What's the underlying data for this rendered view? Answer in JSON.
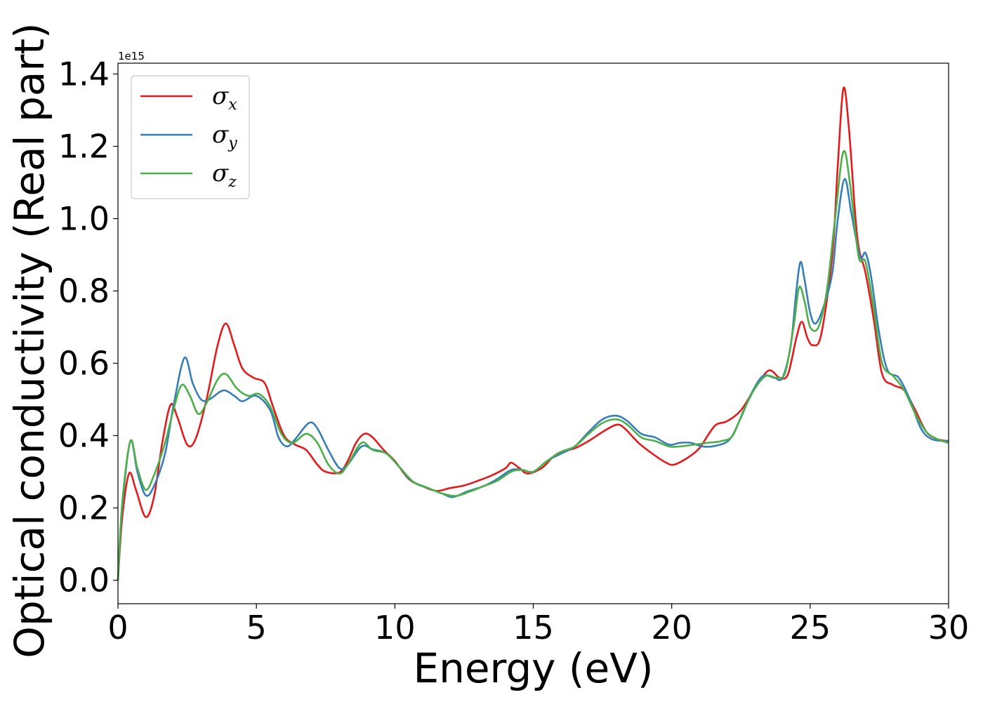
{
  "chart_data": {
    "type": "line",
    "title": "",
    "xlabel": "Energy (eV)",
    "ylabel": "Optical conductivity (Real part)",
    "y_offset_label": "1e15",
    "xlim": [
      0,
      30
    ],
    "ylim": [
      -0.065,
      1.43
    ],
    "xticks": [
      0,
      5,
      10,
      15,
      20,
      25,
      30
    ],
    "xtick_labels": [
      "0",
      "5",
      "10",
      "15",
      "20",
      "25",
      "30"
    ],
    "yticks": [
      0.0,
      0.2,
      0.4,
      0.6,
      0.8,
      1.0,
      1.2,
      1.4
    ],
    "ytick_labels": [
      "0.0",
      "0.2",
      "0.4",
      "0.6",
      "0.8",
      "1.0",
      "1.2",
      "1.4"
    ],
    "grid": false,
    "legend_position": "top-left",
    "series": [
      {
        "name": "σx",
        "legend_main": "σ",
        "legend_sub": "x",
        "color": "#e41a1c",
        "points": [
          [
            0,
            0
          ],
          [
            0.15,
            0.17
          ],
          [
            0.4,
            0.295
          ],
          [
            0.65,
            0.25
          ],
          [
            1.0,
            0.175
          ],
          [
            1.3,
            0.23
          ],
          [
            1.6,
            0.38
          ],
          [
            1.9,
            0.485
          ],
          [
            2.15,
            0.45
          ],
          [
            2.5,
            0.375
          ],
          [
            2.8,
            0.39
          ],
          [
            3.2,
            0.5
          ],
          [
            3.6,
            0.65
          ],
          [
            3.9,
            0.71
          ],
          [
            4.2,
            0.65
          ],
          [
            4.5,
            0.585
          ],
          [
            4.9,
            0.56
          ],
          [
            5.3,
            0.545
          ],
          [
            5.6,
            0.48
          ],
          [
            6.0,
            0.4
          ],
          [
            6.4,
            0.375
          ],
          [
            6.8,
            0.36
          ],
          [
            7.2,
            0.32
          ],
          [
            7.5,
            0.3
          ],
          [
            8.0,
            0.298
          ],
          [
            8.3,
            0.33
          ],
          [
            8.6,
            0.38
          ],
          [
            8.9,
            0.405
          ],
          [
            9.2,
            0.395
          ],
          [
            9.6,
            0.36
          ],
          [
            10.0,
            0.33
          ],
          [
            10.5,
            0.28
          ],
          [
            11.0,
            0.26
          ],
          [
            11.5,
            0.247
          ],
          [
            12.0,
            0.255
          ],
          [
            12.5,
            0.262
          ],
          [
            13.0,
            0.275
          ],
          [
            13.5,
            0.29
          ],
          [
            14.0,
            0.31
          ],
          [
            14.2,
            0.325
          ],
          [
            14.5,
            0.31
          ],
          [
            14.8,
            0.295
          ],
          [
            15.3,
            0.31
          ],
          [
            15.7,
            0.34
          ],
          [
            16.0,
            0.355
          ],
          [
            16.5,
            0.365
          ],
          [
            17.0,
            0.385
          ],
          [
            17.5,
            0.41
          ],
          [
            18.0,
            0.43
          ],
          [
            18.3,
            0.42
          ],
          [
            18.8,
            0.38
          ],
          [
            19.3,
            0.35
          ],
          [
            19.8,
            0.325
          ],
          [
            20.1,
            0.32
          ],
          [
            20.6,
            0.34
          ],
          [
            21.0,
            0.365
          ],
          [
            21.3,
            0.4
          ],
          [
            21.6,
            0.43
          ],
          [
            22.0,
            0.44
          ],
          [
            22.5,
            0.47
          ],
          [
            23.0,
            0.53
          ],
          [
            23.5,
            0.58
          ],
          [
            23.9,
            0.56
          ],
          [
            24.2,
            0.57
          ],
          [
            24.5,
            0.67
          ],
          [
            24.7,
            0.715
          ],
          [
            24.9,
            0.67
          ],
          [
            25.1,
            0.65
          ],
          [
            25.4,
            0.68
          ],
          [
            25.8,
            0.9
          ],
          [
            26.0,
            1.15
          ],
          [
            26.2,
            1.36
          ],
          [
            26.4,
            1.25
          ],
          [
            26.7,
            0.95
          ],
          [
            27.0,
            0.85
          ],
          [
            27.3,
            0.72
          ],
          [
            27.6,
            0.57
          ],
          [
            28.0,
            0.54
          ],
          [
            28.4,
            0.525
          ],
          [
            28.8,
            0.47
          ],
          [
            29.2,
            0.41
          ],
          [
            29.6,
            0.39
          ],
          [
            30.0,
            0.385
          ]
        ]
      },
      {
        "name": "σy",
        "legend_main": "σ",
        "legend_sub": "y",
        "color": "#377eb8",
        "points": [
          [
            0,
            0
          ],
          [
            0.15,
            0.2
          ],
          [
            0.45,
            0.385
          ],
          [
            0.7,
            0.3
          ],
          [
            1.0,
            0.235
          ],
          [
            1.3,
            0.26
          ],
          [
            1.7,
            0.35
          ],
          [
            2.0,
            0.48
          ],
          [
            2.4,
            0.615
          ],
          [
            2.7,
            0.545
          ],
          [
            3.0,
            0.5
          ],
          [
            3.3,
            0.5
          ],
          [
            3.8,
            0.525
          ],
          [
            4.2,
            0.51
          ],
          [
            4.5,
            0.495
          ],
          [
            5.0,
            0.51
          ],
          [
            5.5,
            0.47
          ],
          [
            5.8,
            0.395
          ],
          [
            6.1,
            0.37
          ],
          [
            6.4,
            0.39
          ],
          [
            6.9,
            0.435
          ],
          [
            7.2,
            0.42
          ],
          [
            7.6,
            0.36
          ],
          [
            8.0,
            0.31
          ],
          [
            8.3,
            0.32
          ],
          [
            8.8,
            0.37
          ],
          [
            9.2,
            0.362
          ],
          [
            9.7,
            0.35
          ],
          [
            10.2,
            0.31
          ],
          [
            10.6,
            0.275
          ],
          [
            11.2,
            0.255
          ],
          [
            11.7,
            0.24
          ],
          [
            12.1,
            0.23
          ],
          [
            12.6,
            0.245
          ],
          [
            13.2,
            0.26
          ],
          [
            13.7,
            0.28
          ],
          [
            14.2,
            0.305
          ],
          [
            14.6,
            0.305
          ],
          [
            15.0,
            0.3
          ],
          [
            15.5,
            0.33
          ],
          [
            16.0,
            0.35
          ],
          [
            16.5,
            0.37
          ],
          [
            17.0,
            0.41
          ],
          [
            17.5,
            0.445
          ],
          [
            18.0,
            0.455
          ],
          [
            18.4,
            0.44
          ],
          [
            18.9,
            0.405
          ],
          [
            19.4,
            0.395
          ],
          [
            19.9,
            0.375
          ],
          [
            20.3,
            0.38
          ],
          [
            20.7,
            0.38
          ],
          [
            21.1,
            0.37
          ],
          [
            21.6,
            0.372
          ],
          [
            22.1,
            0.39
          ],
          [
            22.5,
            0.45
          ],
          [
            22.9,
            0.52
          ],
          [
            23.3,
            0.565
          ],
          [
            23.7,
            0.56
          ],
          [
            24.0,
            0.56
          ],
          [
            24.3,
            0.65
          ],
          [
            24.5,
            0.8
          ],
          [
            24.65,
            0.88
          ],
          [
            24.8,
            0.83
          ],
          [
            25.0,
            0.74
          ],
          [
            25.2,
            0.71
          ],
          [
            25.5,
            0.76
          ],
          [
            25.8,
            0.85
          ],
          [
            26.0,
            1.0
          ],
          [
            26.25,
            1.11
          ],
          [
            26.5,
            1.01
          ],
          [
            26.8,
            0.895
          ],
          [
            27.0,
            0.905
          ],
          [
            27.2,
            0.84
          ],
          [
            27.5,
            0.68
          ],
          [
            27.8,
            0.58
          ],
          [
            28.2,
            0.56
          ],
          [
            28.6,
            0.5
          ],
          [
            29.0,
            0.42
          ],
          [
            29.4,
            0.39
          ],
          [
            30.0,
            0.385
          ]
        ]
      },
      {
        "name": "σz",
        "legend_main": "σ",
        "legend_sub": "z",
        "color": "#4daf4a",
        "points": [
          [
            0,
            0
          ],
          [
            0.15,
            0.21
          ],
          [
            0.45,
            0.385
          ],
          [
            0.7,
            0.31
          ],
          [
            1.0,
            0.25
          ],
          [
            1.3,
            0.29
          ],
          [
            1.7,
            0.38
          ],
          [
            2.0,
            0.47
          ],
          [
            2.3,
            0.54
          ],
          [
            2.6,
            0.51
          ],
          [
            2.9,
            0.46
          ],
          [
            3.2,
            0.49
          ],
          [
            3.6,
            0.555
          ],
          [
            3.9,
            0.57
          ],
          [
            4.3,
            0.53
          ],
          [
            4.7,
            0.51
          ],
          [
            5.1,
            0.515
          ],
          [
            5.5,
            0.48
          ],
          [
            5.9,
            0.405
          ],
          [
            6.3,
            0.38
          ],
          [
            6.8,
            0.405
          ],
          [
            7.2,
            0.38
          ],
          [
            7.6,
            0.32
          ],
          [
            8.0,
            0.295
          ],
          [
            8.3,
            0.32
          ],
          [
            8.8,
            0.38
          ],
          [
            9.2,
            0.36
          ],
          [
            9.7,
            0.35
          ],
          [
            10.2,
            0.31
          ],
          [
            10.7,
            0.27
          ],
          [
            11.2,
            0.255
          ],
          [
            11.7,
            0.24
          ],
          [
            12.2,
            0.233
          ],
          [
            12.7,
            0.245
          ],
          [
            13.2,
            0.26
          ],
          [
            13.7,
            0.275
          ],
          [
            14.2,
            0.3
          ],
          [
            14.6,
            0.305
          ],
          [
            15.0,
            0.3
          ],
          [
            15.5,
            0.33
          ],
          [
            16.0,
            0.355
          ],
          [
            16.5,
            0.37
          ],
          [
            17.0,
            0.405
          ],
          [
            17.5,
            0.435
          ],
          [
            18.0,
            0.445
          ],
          [
            18.4,
            0.43
          ],
          [
            18.9,
            0.395
          ],
          [
            19.4,
            0.385
          ],
          [
            19.9,
            0.37
          ],
          [
            20.3,
            0.37
          ],
          [
            20.8,
            0.375
          ],
          [
            21.3,
            0.38
          ],
          [
            21.8,
            0.385
          ],
          [
            22.2,
            0.4
          ],
          [
            22.6,
            0.47
          ],
          [
            23.0,
            0.53
          ],
          [
            23.4,
            0.565
          ],
          [
            23.8,
            0.56
          ],
          [
            24.1,
            0.575
          ],
          [
            24.4,
            0.7
          ],
          [
            24.6,
            0.81
          ],
          [
            24.8,
            0.77
          ],
          [
            25.0,
            0.7
          ],
          [
            25.3,
            0.7
          ],
          [
            25.6,
            0.8
          ],
          [
            25.9,
            1.0
          ],
          [
            26.2,
            1.185
          ],
          [
            26.45,
            1.09
          ],
          [
            26.75,
            0.895
          ],
          [
            27.0,
            0.88
          ],
          [
            27.3,
            0.75
          ],
          [
            27.6,
            0.6
          ],
          [
            28.0,
            0.565
          ],
          [
            28.4,
            0.525
          ],
          [
            28.8,
            0.46
          ],
          [
            29.2,
            0.41
          ],
          [
            29.6,
            0.39
          ],
          [
            30.0,
            0.38
          ]
        ]
      }
    ]
  }
}
